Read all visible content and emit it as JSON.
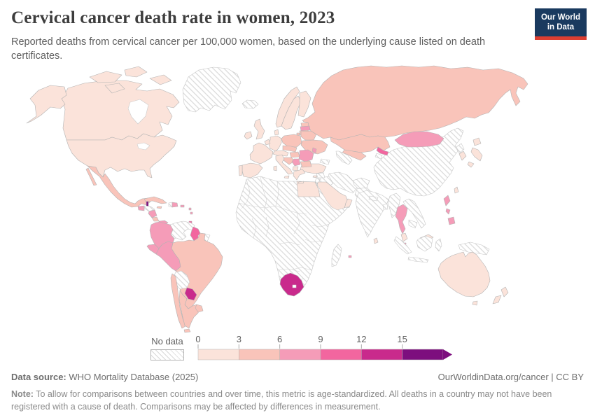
{
  "header": {
    "title": "Cervical cancer death rate in women, 2023",
    "subtitle": "Reported deaths from cervical cancer per 100,000 women, based on the underlying cause listed on death certificates.",
    "logo": {
      "line1": "Our World",
      "line2": "in Data",
      "bg_color": "#1a3a5f",
      "accent_color": "#dc3e31"
    }
  },
  "legend": {
    "no_data_label": "No data",
    "tick_labels": [
      "0",
      "3",
      "6",
      "9",
      "12",
      "15"
    ]
  },
  "footer": {
    "source_label": "Data source:",
    "source_text": " WHO Mortality Database (2025)",
    "link_text": "OurWorldinData.org/cancer | CC BY",
    "note_label": "Note:",
    "note_text": " To allow for comparisons between countries and over time, this metric is age-standardized. All deaths in a country may not have been registered with a cause of death. Comparisons may be affected by differences in measurement."
  },
  "chart_data": {
    "type": "choropleth_map",
    "title": "Cervical cancer death rate in women, 2023",
    "unit": "reported deaths per 100,000 women",
    "year": "2023",
    "legend_position": "bottom",
    "bins": [
      {
        "range": "0-3",
        "color": "#fbe3da"
      },
      {
        "range": "3-6",
        "color": "#f9c4ba"
      },
      {
        "range": "6-9",
        "color": "#f59cb8"
      },
      {
        "range": "9-12",
        "color": "#f2669f"
      },
      {
        "range": "12-15",
        "color": "#c92a8c"
      },
      {
        "range": "15+",
        "color": "#7d0e7e"
      }
    ],
    "no_data_fill": "hatched",
    "countries": {
      "canada": "0-3",
      "united-states": "0-3",
      "alaska": "0-3",
      "arctic-islands": "0-3",
      "greenland": "no-data",
      "iceland": "no-data",
      "mexico": "3-6",
      "guatemala": "6-9",
      "belize": "15+",
      "honduras": "no-data",
      "nicaragua": "6-9",
      "costa-rica": "3-6",
      "panama": "6-9",
      "cuba": "3-6",
      "jamaica": "3-6",
      "haiti": "no-data",
      "dominican-republic": "6-9",
      "puerto-rico": "6-9",
      "lesser-antilles-1": "6-9",
      "lesser-antilles-2": "6-9",
      "trinidad-tobago": "9-12",
      "colombia": "6-9",
      "venezuela": "no-data",
      "guyana": "9-12",
      "suriname": "no-data",
      "french-guiana": "no-data",
      "ecuador": "6-9",
      "peru": "6-9",
      "brazil": "3-6",
      "bolivia": "no-data",
      "paraguay": "12-15",
      "chile": "3-6",
      "argentina": "3-6",
      "uruguay": "3-6",
      "united-kingdom": "0-3",
      "ireland": "0-3",
      "portugal": "0-3",
      "spain": "0-3",
      "france": "0-3",
      "benelux": "0-3",
      "germany": "0-3",
      "denmark": "0-3",
      "norway": "0-3",
      "sweden": "0-3",
      "finland": "0-3",
      "estonia": "3-6",
      "latvia": "6-9",
      "lithuania": "3-6",
      "poland": "3-6",
      "czechia-slovakia": "3-6",
      "switzerland-austria": "0-3",
      "hungary": "3-6",
      "romania": "6-9",
      "moldova": "6-9",
      "belarus": "3-6",
      "ukraine": "3-6",
      "croatia-bosnia": "3-6",
      "serbia": "6-9",
      "bulgaria": "3-6",
      "albania-north-macedonia": "0-3",
      "greece": "0-3",
      "italy": "0-3",
      "russia": "3-6",
      "kazakhstan": "3-6",
      "uzbekistan": "3-6",
      "turkmenistan": "no-data",
      "kyrgyzstan": "9-12",
      "tajikistan": "no-data",
      "caucasus": "no-data",
      "turkey": "0-3",
      "cyprus": "0-3",
      "syria": "no-data",
      "israel-jordan": "no-data",
      "iraq": "no-data",
      "iran": "no-data",
      "afghanistan": "no-data",
      "pakistan": "no-data",
      "saudi-arabia": "0-3",
      "yemen": "no-data",
      "oman": "0-3",
      "africa-mainland": "no-data",
      "egypt": "0-3",
      "south-africa": "12-15",
      "madagascar": "no-data",
      "mauritius": "6-9",
      "india": "no-data",
      "nepal": "no-data",
      "bangladesh": "no-data",
      "sri-lanka": "0-3",
      "china": "no-data",
      "mongolia": "6-9",
      "north-korea": "no-data",
      "south-korea": "0-3",
      "japan": "0-3",
      "taiwan": "0-3",
      "myanmar": "no-data",
      "thailand": "6-9",
      "laos-vietnam": "no-data",
      "cambodia": "no-data",
      "malaysia": "0-3",
      "singapore": "6-9",
      "philippines": "6-9",
      "indonesia": "no-data",
      "new-guinea": "no-data",
      "australia": "0-3",
      "tasmania": "0-3",
      "new-zealand": "0-3"
    }
  }
}
